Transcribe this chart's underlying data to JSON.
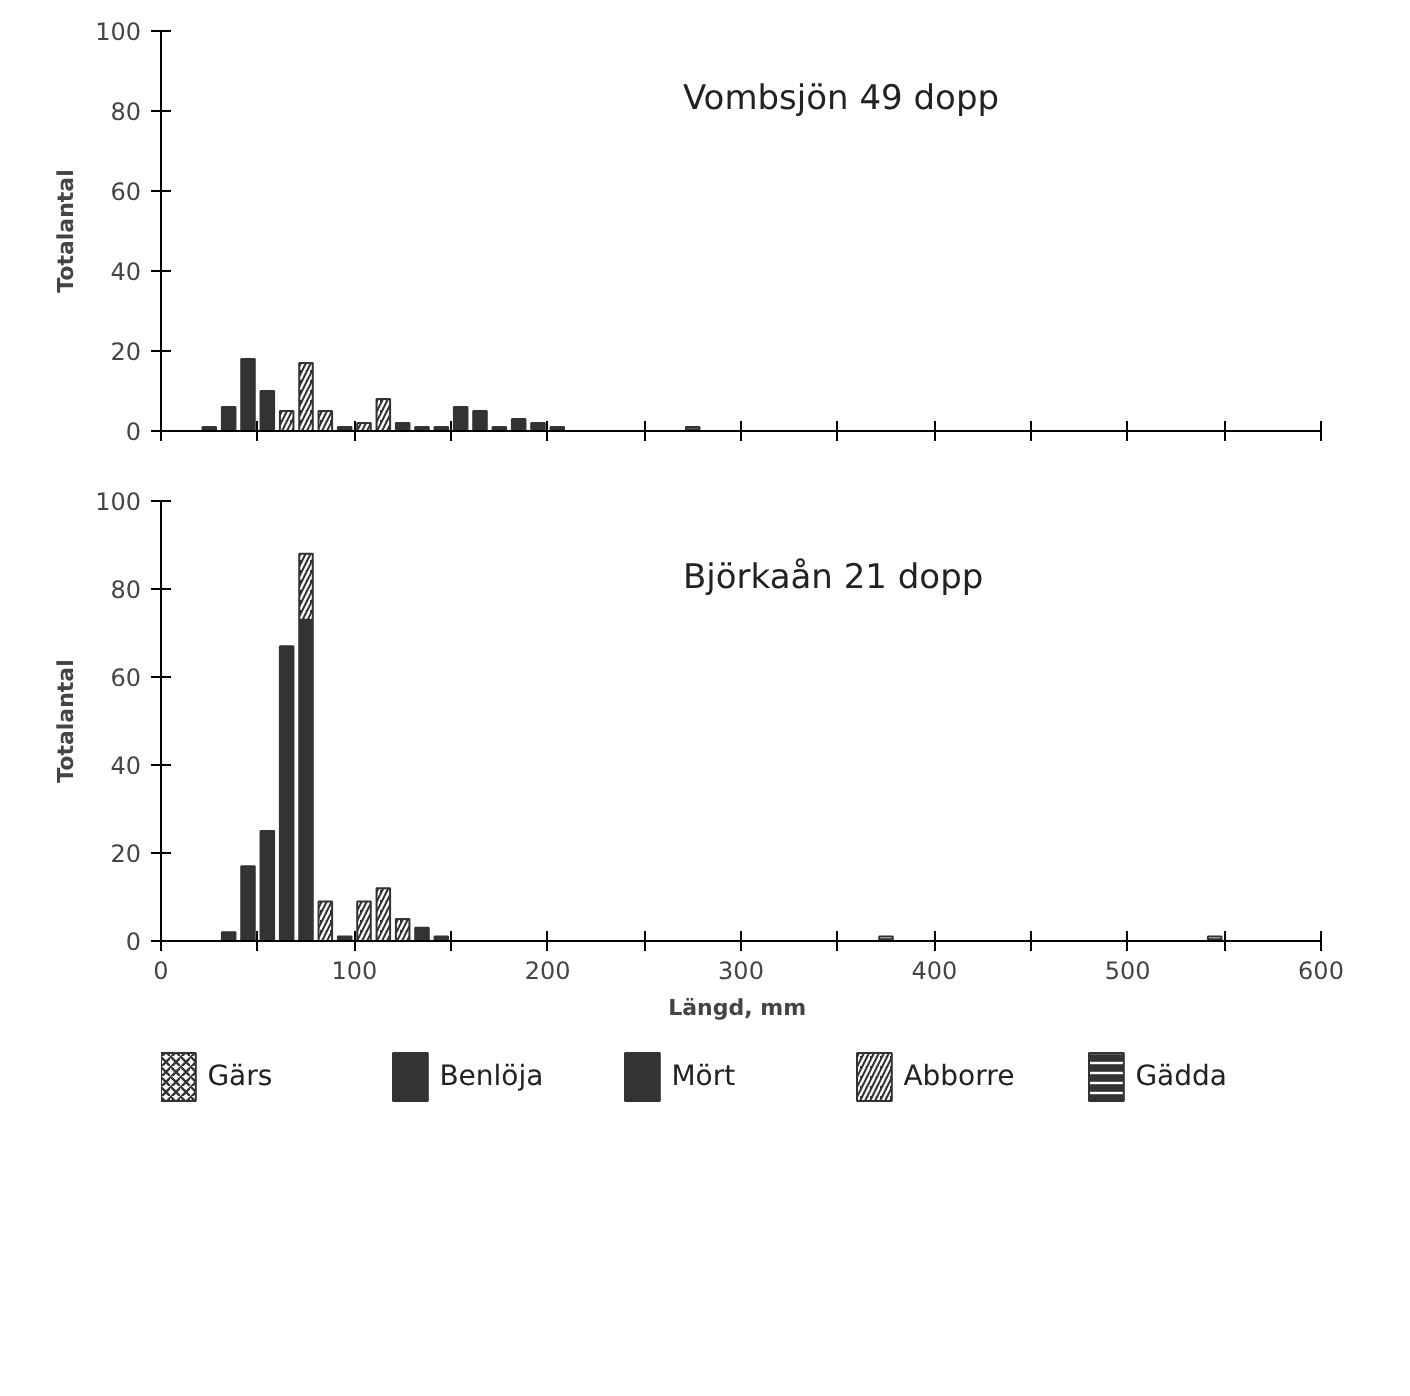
{
  "chart_data": [
    {
      "type": "bar",
      "title": "Vombsjön 49 dopp",
      "ylabel": "Totalantal",
      "stacked": true,
      "grid": false,
      "legend": false,
      "tick_labels": "y",
      "x": [
        25,
        35,
        45,
        55,
        65,
        75,
        85,
        95,
        105,
        115,
        125,
        135,
        145,
        155,
        165,
        175,
        185,
        195,
        205,
        275
      ],
      "xlim": [
        0,
        600
      ],
      "xticks": [
        0,
        {
          "value": 50,
          "label": null
        },
        100,
        {
          "value": 150,
          "label": null
        },
        200,
        {
          "value": 250,
          "label": null
        },
        300,
        {
          "value": 350,
          "label": null
        },
        400,
        {
          "value": 450,
          "label": null
        },
        500,
        {
          "value": 550,
          "label": null
        },
        600
      ],
      "ylim": [
        0,
        100
      ],
      "yticks": [
        0,
        20,
        40,
        60,
        80,
        100
      ],
      "series": [
        {
          "color": "#333333",
          "values": [
            null,
            null,
            null,
            null,
            null,
            null,
            null,
            null,
            null,
            null,
            null,
            null,
            null,
            null,
            null,
            null,
            null,
            null,
            null,
            null
          ]
        },
        {
          "color": "#333333",
          "values": [
            null,
            null,
            null,
            null,
            null,
            null,
            null,
            null,
            null,
            null,
            null,
            null,
            null,
            null,
            null,
            null,
            null,
            null,
            null,
            null
          ]
        },
        {
          "color": "#333333",
          "values": [
            1,
            6,
            18,
            10,
            null,
            null,
            null,
            1,
            null,
            null,
            2,
            1,
            1,
            6,
            5,
            1,
            3,
            2,
            1,
            null
          ]
        },
        {
          "color": "#333333",
          "values": [
            null,
            null,
            null,
            null,
            5,
            17,
            5,
            null,
            2,
            8,
            null,
            null,
            null,
            null,
            null,
            null,
            null,
            null,
            null,
            null
          ]
        },
        {
          "color": "#333333",
          "values": [
            null,
            null,
            null,
            null,
            null,
            null,
            null,
            null,
            null,
            null,
            null,
            null,
            null,
            null,
            null,
            null,
            null,
            null,
            null,
            1
          ]
        }
      ]
    },
    {
      "type": "bar",
      "title": "Björkaån 21 dopp",
      "ylabel": "Totalantal",
      "xlabel": "Längd,  mm",
      "stacked": true,
      "grid": false,
      "legend": "bottom",
      "x": [
        35,
        45,
        55,
        65,
        75,
        85,
        95,
        105,
        115,
        125,
        135,
        145,
        375,
        545
      ],
      "xlim": [
        0,
        600
      ],
      "xticks": [
        0,
        {
          "value": 50,
          "label": null
        },
        100,
        {
          "value": 150,
          "label": null
        },
        200,
        {
          "value": 250,
          "label": null
        },
        300,
        {
          "value": 350,
          "label": null
        },
        400,
        {
          "value": 450,
          "label": null
        },
        500,
        {
          "value": 550,
          "label": null
        },
        600
      ],
      "ylim": [
        0,
        100
      ],
      "yticks": [
        0,
        20,
        40,
        60,
        80,
        100
      ],
      "series": [
        {
          "name": "Gärs",
          "color": "#333333",
          "values": [
            null,
            null,
            null,
            null,
            null,
            null,
            null,
            null,
            null,
            null,
            null,
            null,
            null,
            null
          ]
        },
        {
          "name": "Benlöja",
          "color": "#333333",
          "values": [
            null,
            null,
            null,
            null,
            null,
            null,
            null,
            null,
            null,
            null,
            null,
            null,
            null,
            null
          ]
        },
        {
          "name": "Mört",
          "color": "#333333",
          "values": [
            2,
            17,
            25,
            67,
            73,
            null,
            1,
            null,
            null,
            null,
            3,
            1,
            null,
            null
          ]
        },
        {
          "name": "Abborre",
          "color": "#333333",
          "values": [
            null,
            null,
            null,
            null,
            15,
            9,
            null,
            9,
            12,
            5,
            null,
            null,
            null,
            null
          ]
        },
        {
          "name": "Gädda",
          "color": "#333333",
          "values": [
            null,
            null,
            null,
            null,
            null,
            null,
            null,
            null,
            null,
            null,
            null,
            null,
            1,
            1
          ]
        }
      ]
    }
  ]
}
